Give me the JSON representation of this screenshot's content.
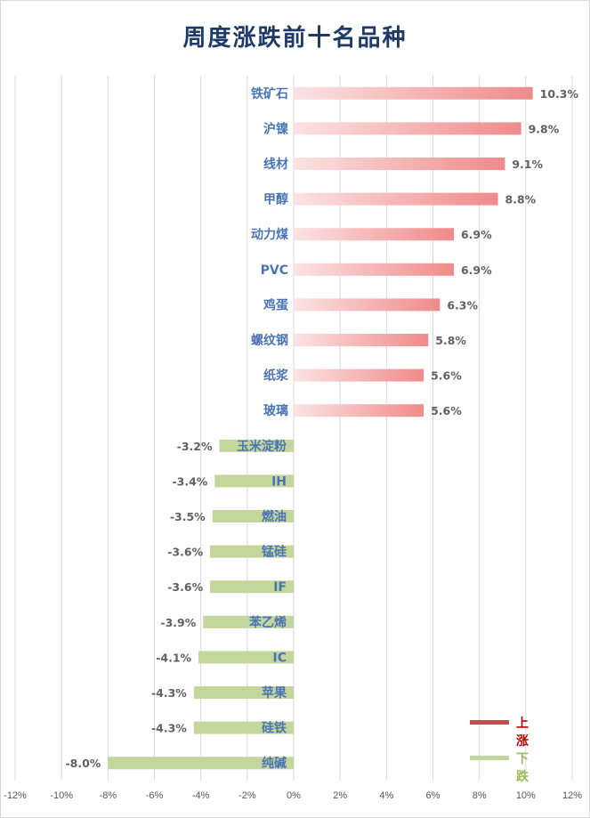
{
  "chart_data": {
    "type": "bar",
    "orientation": "horizontal",
    "title": "周度涨跌前十名品种",
    "categories": [
      "铁矿石",
      "沪镍",
      "线材",
      "甲醇",
      "动力煤",
      "PVC",
      "鸡蛋",
      "螺纹钢",
      "纸浆",
      "玻璃",
      "玉米淀粉",
      "IH",
      "燃油",
      "锰硅",
      "IF",
      "苯乙烯",
      "IC",
      "苹果",
      "硅铁",
      "纯碱"
    ],
    "values": [
      10.3,
      9.8,
      9.1,
      8.8,
      6.9,
      6.9,
      6.3,
      5.8,
      5.6,
      5.6,
      -3.2,
      -3.4,
      -3.5,
      -3.6,
      -3.6,
      -3.9,
      -4.1,
      -4.3,
      -4.3,
      -8.0
    ],
    "value_labels": [
      "10.3%",
      "9.8%",
      "9.1%",
      "8.8%",
      "6.9%",
      "6.9%",
      "6.3%",
      "5.8%",
      "5.6%",
      "5.6%",
      "-3.2%",
      "-3.4%",
      "-3.5%",
      "-3.6%",
      "-3.6%",
      "-3.9%",
      "-4.1%",
      "-4.3%",
      "-4.3%",
      "-8.0%"
    ],
    "xlim": [
      -12,
      12
    ],
    "x_ticks": [
      -12,
      -10,
      -8,
      -6,
      -4,
      -2,
      0,
      2,
      4,
      6,
      8,
      10,
      12
    ],
    "x_tick_labels": [
      "-12%",
      "-10%",
      "-8%",
      "-6%",
      "-4%",
      "-2%",
      "0%",
      "2%",
      "4%",
      "6%",
      "8%",
      "10%",
      "12%"
    ],
    "grid": "vertical",
    "legend": {
      "position": "bottom-right",
      "items": [
        {
          "label": "上涨",
          "color": "#c0504d"
        },
        {
          "label": "下跌",
          "color": "#c3d69b"
        }
      ]
    },
    "colors": {
      "up_start": "#fbe3e3",
      "up_end": "#f08a8a",
      "down": "#c3d69b",
      "title": "#1f3a68",
      "category_label": "#4a74b4",
      "legend_up_text": "#c00000",
      "legend_down_text": "#9bbb59"
    }
  }
}
